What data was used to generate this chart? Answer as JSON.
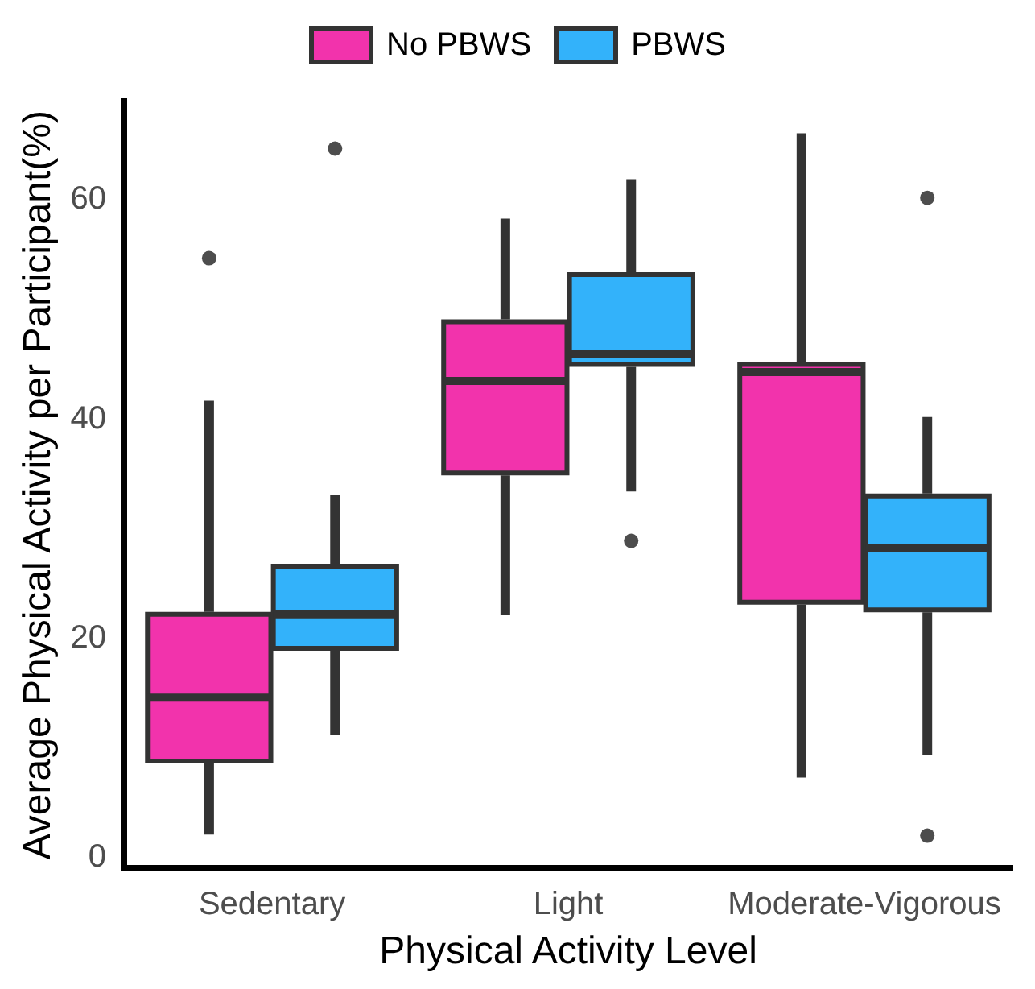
{
  "chart_data": {
    "type": "box",
    "xlabel": "Physical Activity Level",
    "ylabel": "Average Physical Activity per Participant(%)",
    "categories": [
      "Sedentary",
      "Light",
      "Moderate-Vigorous"
    ],
    "ylim": [
      -1,
      69
    ],
    "yticks": [
      0,
      20,
      40,
      60
    ],
    "legend": "top",
    "series": [
      {
        "name": "No PBWS",
        "color": "#f233ac",
        "boxes": [
          {
            "low": 2.1,
            "q1": 8.8,
            "median": 14.6,
            "q3": 22.2,
            "high": 41.7,
            "outliers": [
              54.7
            ]
          },
          {
            "low": 22.1,
            "q1": 35.1,
            "median": 43.5,
            "q3": 48.9,
            "high": 58.3
          },
          {
            "low": 7.3,
            "q1": 23.3,
            "median": 44.3,
            "q3": 45,
            "high": 66.1
          }
        ]
      },
      {
        "name": "PBWS",
        "color": "#33b2fa",
        "boxes": [
          {
            "low": 11.2,
            "q1": 19.1,
            "median": 22.2,
            "q3": 26.6,
            "high": 33.1,
            "outliers": [
              64.7
            ]
          },
          {
            "low": 33.4,
            "q1": 45,
            "median": 46,
            "q3": 53.2,
            "high": 61.9,
            "outliers": [
              28.9
            ]
          },
          {
            "low": 9.4,
            "q1": 22.6,
            "median": 28.2,
            "q3": 33,
            "high": 40.2,
            "outliers": [
              60.2,
              2
            ]
          }
        ]
      }
    ]
  }
}
